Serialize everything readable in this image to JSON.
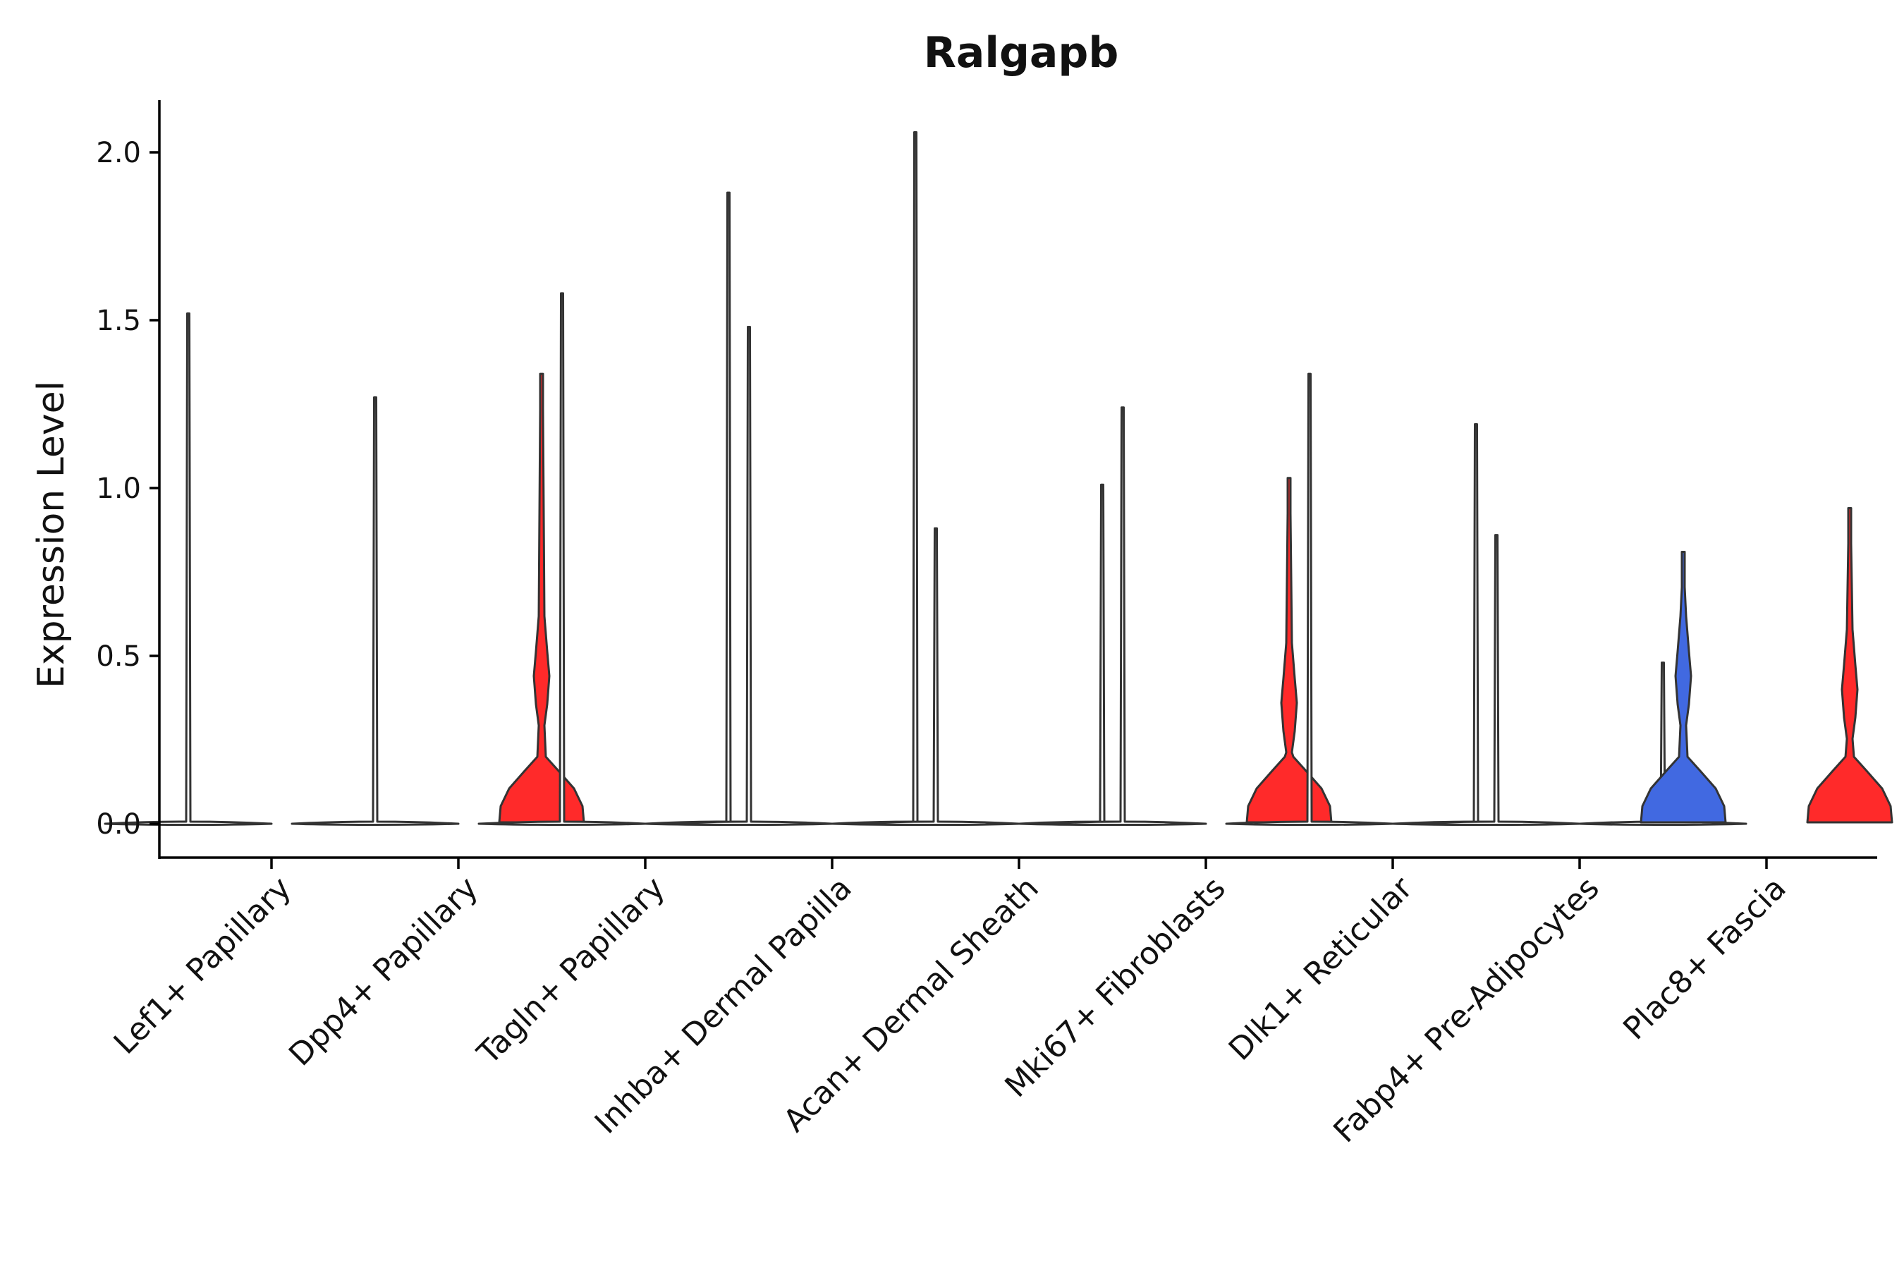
{
  "chart_data": {
    "type": "violin",
    "title": "Ralgapb",
    "xlabel": "",
    "ylabel": "Expression Level",
    "ylim": [
      -0.1,
      2.15
    ],
    "yticks": [
      "0.0",
      "0.5",
      "1.0",
      "1.5",
      "2.0"
    ],
    "grid": false,
    "legend": "none",
    "colors": {
      "low": "#4169e1",
      "high": "#ff2a2a",
      "baseline": "#ffffff"
    },
    "categories": [
      "Lef1+ Papillary",
      "Dpp4+ Papillary",
      "Tagln+ Papillary",
      "Inhba+ Dermal Papilla",
      "Acan+ Dermal Sheath",
      "Mki67+ Fibroblasts",
      "Dlk1+ Reticular",
      "Fabp4+ Pre-Adipocytes",
      "Plac8+ Fascia"
    ],
    "violins": [
      {
        "category": 0,
        "side": "left",
        "max": 1.52,
        "fill": "baseline"
      },
      {
        "category": 1,
        "side": "left",
        "max": 1.27,
        "fill": "baseline"
      },
      {
        "category": 1,
        "side": "right",
        "max": 1.34,
        "fill": "high",
        "mode_upper": 0.44
      },
      {
        "category": 2,
        "side": "left",
        "max": 1.58,
        "fill": "baseline"
      },
      {
        "category": 2,
        "side": "right",
        "max": 1.88,
        "fill": "baseline"
      },
      {
        "category": 3,
        "side": "left",
        "max": 1.48,
        "fill": "baseline"
      },
      {
        "category": 3,
        "side": "right",
        "max": 2.06,
        "fill": "baseline"
      },
      {
        "category": 4,
        "side": "left",
        "max": 0.88,
        "fill": "baseline"
      },
      {
        "category": 4,
        "side": "right",
        "max": 1.01,
        "fill": "baseline"
      },
      {
        "category": 5,
        "side": "left",
        "max": 1.24,
        "fill": "baseline"
      },
      {
        "category": 5,
        "side": "right",
        "max": 1.03,
        "fill": "high",
        "mode_upper": 0.36
      },
      {
        "category": 6,
        "side": "left",
        "max": 1.34,
        "fill": "baseline"
      },
      {
        "category": 6,
        "side": "right",
        "max": 1.19,
        "fill": "baseline"
      },
      {
        "category": 7,
        "side": "left",
        "max": 0.86,
        "fill": "baseline"
      },
      {
        "category": 7,
        "side": "right",
        "max": 0.48,
        "fill": "baseline"
      },
      {
        "category": 8,
        "side": "left",
        "max": 0.81,
        "fill": "low",
        "mode_upper": 0.44
      },
      {
        "category": 8,
        "side": "right",
        "max": 0.94,
        "fill": "high",
        "mode_upper": 0.4
      }
    ]
  }
}
